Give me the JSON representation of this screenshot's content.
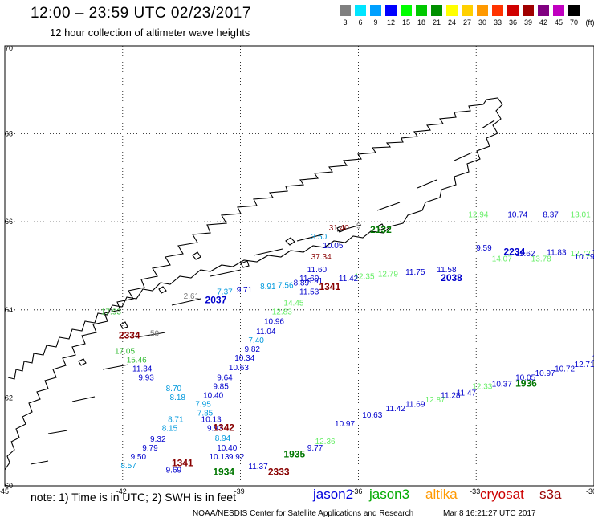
{
  "title": "12:00 – 23:59 UTC 02/23/2017",
  "subtitle": "12 hour collection of altimeter wave heights",
  "legend": {
    "unit": "(ft)",
    "items": [
      {
        "label": "3",
        "color": "#808080"
      },
      {
        "label": "6",
        "color": "#00e5ff"
      },
      {
        "label": "9",
        "color": "#00a0ff"
      },
      {
        "label": "12",
        "color": "#0000ff"
      },
      {
        "label": "15",
        "color": "#00ff00"
      },
      {
        "label": "18",
        "color": "#00c800"
      },
      {
        "label": "21",
        "color": "#009000"
      },
      {
        "label": "24",
        "color": "#ffff00"
      },
      {
        "label": "27",
        "color": "#ffd000"
      },
      {
        "label": "30",
        "color": "#ff9900"
      },
      {
        "label": "33",
        "color": "#ff3300"
      },
      {
        "label": "36",
        "color": "#d00000"
      },
      {
        "label": "39",
        "color": "#a00000"
      },
      {
        "label": "42",
        "color": "#800080"
      },
      {
        "label": "45",
        "color": "#c000c0"
      },
      {
        "label": "70",
        "color": "#000000"
      }
    ]
  },
  "axes": {
    "lon_ticks": [
      "-45",
      "-42",
      "-39",
      "-36",
      "-33",
      "-30"
    ],
    "lat_ticks": [
      "70",
      "68",
      "66",
      "64",
      "62",
      "60"
    ]
  },
  "footnote": "note:  1) Time is in UTC;  2) SWH is in feet",
  "satellites": [
    {
      "name": "jason2",
      "color": "#0000dd"
    },
    {
      "name": "jason3",
      "color": "#00aa00"
    },
    {
      "name": "altika",
      "color": "#ff9900"
    },
    {
      "name": "cryosat",
      "color": "#cc0000"
    },
    {
      "name": "s3a",
      "color": "#990000"
    }
  ],
  "credit": "NOAA/NESDIS Center for Satellite Applications and Research",
  "stamp": "Mar  8 16:21:27 UTC 2017",
  "colors": {
    "grey": "#777777",
    "cyan": "#0099dd",
    "blue": "#0000cc",
    "green": "#33bb33",
    "lgreen": "#66ee66",
    "maroon": "#880000",
    "dgreen": "#007700"
  },
  "wave_labels": [
    {
      "t": "12.94",
      "lon": -33.2,
      "lat": 66.1,
      "c": "lgreen"
    },
    {
      "t": "10.74",
      "lon": -32.2,
      "lat": 66.1,
      "c": "blue"
    },
    {
      "t": "8.37",
      "lon": -31.3,
      "lat": 66.1,
      "c": "blue"
    },
    {
      "t": "13.01",
      "lon": -30.6,
      "lat": 66.1,
      "c": "lgreen"
    },
    {
      "t": "13.54",
      "lon": -29.9,
      "lat": 66.1,
      "c": "lgreen"
    },
    {
      "t": "9.59",
      "lon": -33.0,
      "lat": 65.35,
      "c": "blue"
    },
    {
      "t": "11.62",
      "lon": -32.0,
      "lat": 65.22,
      "c": "blue"
    },
    {
      "t": "11.83",
      "lon": -31.2,
      "lat": 65.25,
      "c": "blue"
    },
    {
      "t": "12.72",
      "lon": -30.6,
      "lat": 65.22,
      "c": "lgreen"
    },
    {
      "t": "11.91",
      "lon": -30.05,
      "lat": 65.25,
      "c": "blue"
    },
    {
      "t": "14.07",
      "lon": -32.6,
      "lat": 65.1,
      "c": "lgreen"
    },
    {
      "t": "13.78",
      "lon": -31.6,
      "lat": 65.1,
      "c": "lgreen"
    },
    {
      "t": "10.79",
      "lon": -30.5,
      "lat": 65.15,
      "c": "blue"
    },
    {
      "t": "11.58",
      "lon": -34.0,
      "lat": 64.85,
      "c": "blue"
    },
    {
      "t": "11.75",
      "lon": -34.8,
      "lat": 64.8,
      "c": "blue"
    },
    {
      "t": "12.79",
      "lon": -35.5,
      "lat": 64.75,
      "c": "lgreen"
    },
    {
      "t": "12.35",
      "lon": -36.1,
      "lat": 64.7,
      "c": "lgreen"
    },
    {
      "t": "10.05",
      "lon": -36.9,
      "lat": 65.4,
      "c": "blue"
    },
    {
      "t": "37.34",
      "lon": -37.2,
      "lat": 65.15,
      "c": "maroon"
    },
    {
      "t": "11.60",
      "lon": -37.3,
      "lat": 64.85,
      "c": "blue"
    },
    {
      "t": "11.42",
      "lon": -36.5,
      "lat": 64.65,
      "c": "blue"
    },
    {
      "t": "11.60",
      "lon": -37.5,
      "lat": 64.65,
      "c": "blue"
    },
    {
      "t": "9.91",
      "lon": -37.3,
      "lat": 64.6,
      "c": "blue"
    },
    {
      "t": "7.56",
      "lon": -38.05,
      "lat": 64.5,
      "c": "cyan"
    },
    {
      "t": "8.89",
      "lon": -37.65,
      "lat": 64.55,
      "c": "blue"
    },
    {
      "t": "8.91",
      "lon": -38.5,
      "lat": 64.47,
      "c": "cyan"
    },
    {
      "t": "9.71",
      "lon": -39.1,
      "lat": 64.4,
      "c": "blue"
    },
    {
      "t": "7.37",
      "lon": -39.6,
      "lat": 64.35,
      "c": "cyan"
    },
    {
      "t": "2.61",
      "lon": -40.45,
      "lat": 64.25,
      "c": "grey"
    },
    {
      "t": "11.53",
      "lon": -37.5,
      "lat": 64.35,
      "c": "blue"
    },
    {
      "t": "14.45",
      "lon": -37.9,
      "lat": 64.1,
      "c": "lgreen"
    },
    {
      "t": "12.83",
      "lon": -38.2,
      "lat": 63.9,
      "c": "lgreen"
    },
    {
      "t": "10.96",
      "lon": -38.4,
      "lat": 63.68,
      "c": "blue"
    },
    {
      "t": "11.04",
      "lon": -38.6,
      "lat": 63.45,
      "c": "blue"
    },
    {
      "t": "7.40",
      "lon": -38.8,
      "lat": 63.25,
      "c": "cyan"
    },
    {
      "t": "9.82",
      "lon": -38.9,
      "lat": 63.05,
      "c": "blue"
    },
    {
      "t": "10.34",
      "lon": -39.15,
      "lat": 62.85,
      "c": "blue"
    },
    {
      "t": "10.63",
      "lon": -39.3,
      "lat": 62.63,
      "c": "blue"
    },
    {
      "t": "9.64",
      "lon": -39.6,
      "lat": 62.4,
      "c": "blue"
    },
    {
      "t": "9.85",
      "lon": -39.7,
      "lat": 62.2,
      "c": "blue"
    },
    {
      "t": "10.40",
      "lon": -39.95,
      "lat": 62.0,
      "c": "blue"
    },
    {
      "t": "7.95",
      "lon": -40.15,
      "lat": 61.8,
      "c": "cyan"
    },
    {
      "t": "7.85",
      "lon": -40.1,
      "lat": 61.6,
      "c": "cyan"
    },
    {
      "t": "10.13",
      "lon": -40.0,
      "lat": 61.45,
      "c": "blue"
    },
    {
      "t": "9.93",
      "lon": -39.85,
      "lat": 61.25,
      "c": "blue"
    },
    {
      "t": "8.94",
      "lon": -39.65,
      "lat": 61.02,
      "c": "cyan"
    },
    {
      "t": "10.40",
      "lon": -39.6,
      "lat": 60.8,
      "c": "blue"
    },
    {
      "t": "10.13",
      "lon": -39.8,
      "lat": 60.6,
      "c": "blue"
    },
    {
      "t": "9.92",
      "lon": -39.3,
      "lat": 60.6,
      "c": "blue"
    },
    {
      "t": "11.37",
      "lon": -38.8,
      "lat": 60.38,
      "c": "blue"
    },
    {
      "t": "8.70",
      "lon": -40.9,
      "lat": 62.15,
      "c": "cyan"
    },
    {
      "t": "8.18",
      "lon": -40.8,
      "lat": 61.95,
      "c": "cyan"
    },
    {
      "t": "8.71",
      "lon": -40.85,
      "lat": 61.45,
      "c": "cyan"
    },
    {
      "t": "8.15",
      "lon": -41.0,
      "lat": 61.25,
      "c": "cyan"
    },
    {
      "t": "9.32",
      "lon": -41.3,
      "lat": 61.0,
      "c": "blue"
    },
    {
      "t": "9.79",
      "lon": -41.5,
      "lat": 60.8,
      "c": "blue"
    },
    {
      "t": "9.50",
      "lon": -41.8,
      "lat": 60.6,
      "c": "blue"
    },
    {
      "t": "8.57",
      "lon": -42.05,
      "lat": 60.4,
      "c": "cyan"
    },
    {
      "t": "9.69",
      "lon": -40.9,
      "lat": 60.3,
      "c": "blue"
    },
    {
      "t": "9.93",
      "lon": -41.6,
      "lat": 62.4,
      "c": "blue"
    },
    {
      "t": "11.34",
      "lon": -41.75,
      "lat": 62.6,
      "c": "blue"
    },
    {
      "t": "15.46",
      "lon": -41.9,
      "lat": 62.8,
      "c": "green"
    },
    {
      "t": "17.05",
      "lon": -42.2,
      "lat": 63.0,
      "c": "green"
    },
    {
      "t": "17.93",
      "lon": -42.55,
      "lat": 63.9,
      "c": "green"
    },
    {
      "t": "59",
      "lon": -41.3,
      "lat": 63.4,
      "c": "grey"
    },
    {
      "t": "9.77",
      "lon": -37.3,
      "lat": 60.8,
      "c": "blue"
    },
    {
      "t": "12.36",
      "lon": -37.1,
      "lat": 60.95,
      "c": "lgreen"
    },
    {
      "t": "10.97",
      "lon": -36.6,
      "lat": 61.35,
      "c": "blue"
    },
    {
      "t": "10.63",
      "lon": -35.9,
      "lat": 61.55,
      "c": "blue"
    },
    {
      "t": "11.42",
      "lon": -35.3,
      "lat": 61.7,
      "c": "blue"
    },
    {
      "t": "11.69",
      "lon": -34.8,
      "lat": 61.8,
      "c": "blue"
    },
    {
      "t": "12.87",
      "lon": -34.3,
      "lat": 61.9,
      "c": "lgreen"
    },
    {
      "t": "11.28",
      "lon": -33.9,
      "lat": 62.0,
      "c": "blue"
    },
    {
      "t": "11.47",
      "lon": -33.5,
      "lat": 62.05,
      "c": "blue"
    },
    {
      "t": "12.33",
      "lon": -33.1,
      "lat": 62.2,
      "c": "lgreen"
    },
    {
      "t": "10.37",
      "lon": -32.6,
      "lat": 62.25,
      "c": "blue"
    },
    {
      "t": "10.05",
      "lon": -32.0,
      "lat": 62.4,
      "c": "blue"
    },
    {
      "t": "10.97",
      "lon": -31.5,
      "lat": 62.5,
      "c": "blue"
    },
    {
      "t": "10.72",
      "lon": -31.0,
      "lat": 62.6,
      "c": "blue"
    },
    {
      "t": "12.71",
      "lon": -30.5,
      "lat": 62.7,
      "c": "blue"
    },
    {
      "t": "11.36",
      "lon": -30.05,
      "lat": 62.85,
      "c": "blue"
    },
    {
      "t": "3.50",
      "lon": -37.2,
      "lat": 65.6,
      "c": "cyan"
    },
    {
      "t": "31.40",
      "lon": -36.75,
      "lat": 65.8,
      "c": "maroon"
    },
    {
      "t": "9",
      "lon": -36.05,
      "lat": 65.85,
      "c": "grey"
    }
  ],
  "time_labels": [
    {
      "t": "2132",
      "lon": -35.7,
      "lat": 65.75,
      "c": "dgreen"
    },
    {
      "t": "2234",
      "lon": -32.3,
      "lat": 65.25,
      "c": "blue"
    },
    {
      "t": "2038",
      "lon": -33.9,
      "lat": 64.65,
      "c": "blue"
    },
    {
      "t": "1341",
      "lon": -37.0,
      "lat": 64.45,
      "c": "maroon"
    },
    {
      "t": "2037",
      "lon": -39.9,
      "lat": 64.15,
      "c": "blue"
    },
    {
      "t": "2334",
      "lon": -42.1,
      "lat": 63.35,
      "c": "maroon"
    },
    {
      "t": "1936",
      "lon": -32.0,
      "lat": 62.25,
      "c": "dgreen"
    },
    {
      "t": "1342",
      "lon": -39.7,
      "lat": 61.25,
      "c": "maroon"
    },
    {
      "t": "1935",
      "lon": -37.9,
      "lat": 60.65,
      "c": "dgreen"
    },
    {
      "t": "1341",
      "lon": -40.75,
      "lat": 60.45,
      "c": "maroon"
    },
    {
      "t": "1934",
      "lon": -39.7,
      "lat": 60.25,
      "c": "dgreen"
    },
    {
      "t": "2333",
      "lon": -38.3,
      "lat": 60.25,
      "c": "maroon"
    }
  ]
}
